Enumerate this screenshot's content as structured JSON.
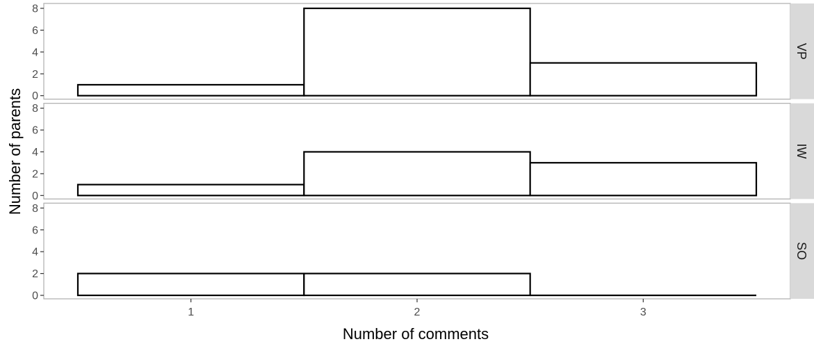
{
  "chart_data": {
    "type": "bar",
    "subtype": "faceted-histogram",
    "xlabel": "Number of comments",
    "ylabel": "Number of parents",
    "categories": [
      1,
      2,
      3
    ],
    "x_tick_labels": [
      "1",
      "2",
      "3"
    ],
    "y_ticks": [
      0,
      2,
      4,
      6,
      8
    ],
    "y_tick_labels": [
      "0",
      "2",
      "4",
      "6",
      "8"
    ],
    "ylim": [
      0,
      8
    ],
    "xlim": [
      0.5,
      3.5
    ],
    "grid": false,
    "facets": [
      {
        "name": "VP",
        "values": [
          1,
          8,
          3
        ]
      },
      {
        "name": "IW",
        "values": [
          1,
          4,
          3
        ]
      },
      {
        "name": "SO",
        "values": [
          2,
          2,
          0
        ]
      }
    ],
    "colors": {
      "bar_fill": "#ffffff",
      "bar_outline": "#000000",
      "strip_fill": "#d9d9d9",
      "panel_border": "#b3b3b3"
    }
  }
}
